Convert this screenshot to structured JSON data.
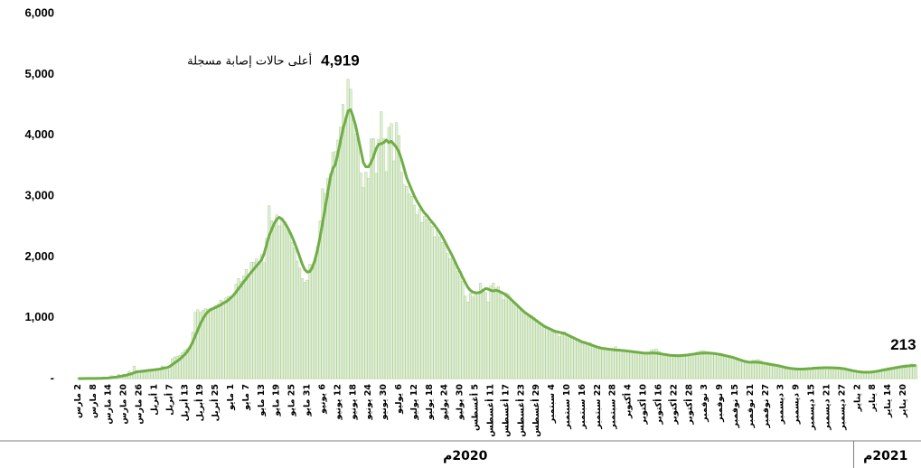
{
  "chart_data": {
    "type": "bar",
    "ylim": [
      0,
      6000
    ],
    "yticks": [
      {
        "value": 0,
        "label": "-"
      },
      {
        "value": 1000,
        "label": "1,000"
      },
      {
        "value": 2000,
        "label": "2,000"
      },
      {
        "value": 3000,
        "label": "3,000"
      },
      {
        "value": 4000,
        "label": "4,000"
      },
      {
        "value": 5000,
        "label": "5,000"
      },
      {
        "value": 6000,
        "label": "6,000"
      }
    ],
    "categories": [
      "2 مارس",
      null,
      null,
      null,
      null,
      null,
      "8 مارس",
      null,
      null,
      null,
      null,
      null,
      "14 مارس",
      null,
      null,
      null,
      null,
      null,
      "20 مارس",
      null,
      null,
      null,
      null,
      null,
      "26 مارس",
      null,
      null,
      null,
      null,
      null,
      "1 أبريل",
      null,
      null,
      null,
      null,
      null,
      "7 أبريل",
      null,
      null,
      null,
      null,
      null,
      "13 أبريل",
      null,
      null,
      null,
      null,
      null,
      "19 أبريل",
      null,
      null,
      null,
      null,
      null,
      "25 أبريل",
      null,
      null,
      null,
      null,
      null,
      "1 مايو",
      null,
      null,
      null,
      null,
      null,
      "7 مايو",
      null,
      null,
      null,
      null,
      null,
      "13 مايو",
      null,
      null,
      null,
      null,
      null,
      "19 مايو",
      null,
      null,
      null,
      null,
      null,
      "25 مايو",
      null,
      null,
      null,
      null,
      null,
      "31 مايو",
      null,
      null,
      null,
      null,
      null,
      "6 يونيو",
      null,
      null,
      null,
      null,
      null,
      "12 يونيو",
      null,
      null,
      null,
      null,
      null,
      "18 يونيو",
      null,
      null,
      null,
      null,
      null,
      "24 يونيو",
      null,
      null,
      null,
      null,
      null,
      "30 يونيو",
      null,
      null,
      null,
      null,
      null,
      "6 يوليو",
      null,
      null,
      null,
      null,
      null,
      "12 يوليو",
      null,
      null,
      null,
      null,
      null,
      "18 يوليو",
      null,
      null,
      null,
      null,
      null,
      "24 يوليو",
      null,
      null,
      null,
      null,
      null,
      "30 يوليو",
      null,
      null,
      null,
      null,
      null,
      "5 أغسطس",
      null,
      null,
      null,
      null,
      null,
      "11 أغسطس",
      null,
      null,
      null,
      null,
      null,
      "17 أغسطس",
      null,
      null,
      null,
      null,
      null,
      "23 أغسطس",
      null,
      null,
      null,
      null,
      null,
      "29 أغسطس",
      null,
      null,
      null,
      null,
      null,
      "4 سبتمبر",
      null,
      null,
      null,
      null,
      null,
      "10 سبتمبر",
      null,
      null,
      null,
      null,
      null,
      "16 سبتمبر",
      null,
      null,
      null,
      null,
      null,
      "22 سبتمبر",
      null,
      null,
      null,
      null,
      null,
      "28 سبتمبر",
      null,
      null,
      null,
      null,
      null,
      "4 أكتوبر",
      null,
      null,
      null,
      null,
      null,
      "10 أكتوبر",
      null,
      null,
      null,
      null,
      null,
      "16 أكتوبر",
      null,
      null,
      null,
      null,
      null,
      "22 أكتوبر",
      null,
      null,
      null,
      null,
      null,
      "28 أكتوبر",
      null,
      null,
      null,
      null,
      null,
      "3 نوفمبر",
      null,
      null,
      null,
      null,
      null,
      "9 نوفمبر",
      null,
      null,
      null,
      null,
      null,
      "15 نوفمبر",
      null,
      null,
      null,
      null,
      null,
      "21 نوفمبر",
      null,
      null,
      null,
      null,
      null,
      "27 نوفمبر",
      null,
      null,
      null,
      null,
      null,
      "3 ديسمبر",
      null,
      null,
      null,
      null,
      null,
      "9 ديسمبر",
      null,
      null,
      null,
      null,
      null,
      "15 ديسمبر",
      null,
      null,
      null,
      null,
      null,
      "21 ديسمبر",
      null,
      null,
      null,
      null,
      null,
      "27 ديسمبر",
      null,
      null,
      null,
      null,
      null,
      "2 يناير",
      null,
      null,
      null,
      null,
      null,
      "8 يناير",
      null,
      null,
      null,
      null,
      null,
      "14 يناير",
      null,
      null,
      null,
      null,
      null,
      "20 يناير",
      null,
      null,
      null,
      null,
      null
    ],
    "series": [
      {
        "style": "bar",
        "color": "#e2efda",
        "stroke": "#a9d08e",
        "values": [
          0,
          1,
          0,
          1,
          3,
          0,
          4,
          5,
          5,
          0,
          24,
          17,
          17,
          47,
          15,
          38,
          67,
          36,
          70,
          51,
          119,
          56,
          205,
          133,
          112,
          92,
          99,
          96,
          154,
          110,
          157,
          165,
          140,
          206,
          191,
          138,
          190,
          327,
          355,
          364,
          382,
          429,
          472,
          493,
          518,
          762,
          1088,
          1132,
          1088,
          1122,
          1147,
          1141,
          1158,
          1172,
          1197,
          1223,
          1289,
          1266,
          1325,
          1351,
          1344,
          1362,
          1552,
          1645,
          1595,
          1687,
          1793,
          1701,
          1905,
          1912,
          1966,
          1911,
          2039,
          1905,
          2307,
          2840,
          2593,
          2509,
          2691,
          2509,
          2642,
          2532,
          2442,
          2399,
          2235,
          2148,
          1931,
          1815,
          1644,
          1581,
          1618,
          1881,
          1869,
          1975,
          2171,
          2591,
          3121,
          3045,
          3288,
          3369,
          3717,
          3733,
          3921,
          4133,
          4507,
          4267,
          4919,
          4757,
          4301,
          4019,
          3941,
          3379,
          3139,
          3393,
          3288,
          3938,
          3946,
          3372,
          3927,
          4387,
          3943,
          3402,
          4128,
          4193,
          3580,
          4207,
          3995,
          3392,
          3183,
          3159,
          3036,
          2994,
          2852,
          2692,
          2779,
          2565,
          2671,
          2613,
          2565,
          2504,
          2331,
          2429,
          2331,
          2238,
          2201,
          2056,
          1968,
          1993,
          1897,
          1759,
          1686,
          1599,
          1357,
          1258,
          1402,
          1342,
          1389,
          1428,
          1567,
          1469,
          1413,
          1257,
          1521,
          1569,
          1488,
          1513,
          1402,
          1294,
          1409,
          1387,
          1307,
          1258,
          1230,
          1184,
          1151,
          1069,
          1059,
          1010,
          1038,
          1002,
          936,
          919,
          905,
          878,
          832,
          802,
          771,
          751,
          780,
          687,
          726,
          768,
          725,
          704,
          668,
          643,
          624,
          612,
          580,
          584,
          567,
          589,
          544,
          532,
          505,
          515,
          507,
          510,
          492,
          470,
          476,
          522,
          457,
          453,
          466,
          456,
          443,
          433,
          429,
          421,
          418,
          428,
          411,
          430,
          437,
          466,
          476,
          488,
          452,
          395,
          391,
          378,
          373,
          365,
          362,
          357,
          347,
          346,
          376,
          378,
          389,
          399,
          411,
          435,
          446,
          461,
          456,
          442,
          435,
          418,
          422,
          402,
          392,
          375,
          361,
          354,
          349,
          336,
          322,
          311,
          298,
          290,
          281,
          274,
          283,
          299,
          301,
          312,
          296,
          265,
          248,
          245,
          232,
          222,
          214,
          203,
          199,
          191,
          184,
          172,
          168,
          161,
          152,
          155,
          148,
          157,
          162,
          170,
          176,
          169,
          174,
          178,
          181,
          184,
          186,
          179,
          178,
          175,
          172,
          169,
          163,
          157,
          145,
          131,
          118,
          113,
          101,
          98,
          93,
          96,
          104,
          110,
          118,
          127,
          138,
          149,
          162,
          170,
          178,
          185,
          190,
          196,
          205,
          211,
          218,
          229,
          224,
          239,
          235,
          213
        ]
      },
      {
        "style": "line",
        "color": "#70ad47",
        "values": [
          0,
          0,
          0,
          1,
          1,
          1,
          2,
          2,
          3,
          4,
          6,
          8,
          10,
          15,
          20,
          25,
          33,
          40,
          48,
          55,
          70,
          80,
          95,
          110,
          115,
          120,
          125,
          130,
          135,
          140,
          145,
          150,
          155,
          165,
          175,
          180,
          200,
          230,
          260,
          290,
          320,
          360,
          400,
          450,
          520,
          600,
          700,
          800,
          900,
          980,
          1050,
          1100,
          1130,
          1150,
          1170,
          1190,
          1210,
          1240,
          1260,
          1290,
          1330,
          1370,
          1420,
          1480,
          1530,
          1590,
          1640,
          1700,
          1750,
          1800,
          1850,
          1900,
          1950,
          2050,
          2200,
          2350,
          2450,
          2550,
          2620,
          2650,
          2620,
          2570,
          2500,
          2420,
          2330,
          2230,
          2120,
          2000,
          1880,
          1790,
          1750,
          1760,
          1830,
          1950,
          2120,
          2330,
          2560,
          2800,
          3050,
          3300,
          3450,
          3520,
          3700,
          3900,
          4100,
          4250,
          4400,
          4420,
          4300,
          4150,
          3950,
          3750,
          3550,
          3480,
          3480,
          3550,
          3650,
          3780,
          3850,
          3860,
          3880,
          3920,
          3880,
          3900,
          3850,
          3800,
          3720,
          3600,
          3450,
          3300,
          3200,
          3100,
          3000,
          2920,
          2850,
          2780,
          2720,
          2680,
          2620,
          2570,
          2520,
          2460,
          2400,
          2330,
          2250,
          2170,
          2090,
          2010,
          1920,
          1830,
          1750,
          1660,
          1580,
          1500,
          1450,
          1420,
          1410,
          1410,
          1420,
          1450,
          1480,
          1470,
          1450,
          1440,
          1450,
          1440,
          1420,
          1400,
          1370,
          1340,
          1300,
          1260,
          1220,
          1180,
          1140,
          1100,
          1070,
          1040,
          1010,
          980,
          950,
          920,
          890,
          860,
          840,
          820,
          800,
          780,
          770,
          760,
          750,
          740,
          720,
          700,
          680,
          660,
          640,
          620,
          600,
          590,
          575,
          560,
          545,
          530,
          515,
          505,
          495,
          490,
          485,
          480,
          475,
          470,
          468,
          465,
          460,
          456,
          450,
          445,
          440,
          435,
          430,
          425,
          420,
          418,
          418,
          420,
          420,
          418,
          412,
          405,
          398,
          392,
          385,
          380,
          378,
          376,
          376,
          378,
          382,
          386,
          392,
          398,
          404,
          410,
          415,
          418,
          420,
          420,
          418,
          415,
          410,
          404,
          397,
          388,
          378,
          368,
          358,
          348,
          335,
          320,
          305,
          292,
          280,
          272,
          270,
          270,
          270,
          268,
          262,
          255,
          248,
          240,
          232,
          225,
          218,
          210,
          200,
          190,
          180,
          172,
          166,
          161,
          158,
          156,
          155,
          157,
          160,
          163,
          166,
          170,
          172,
          175,
          177,
          178,
          178,
          178,
          177,
          175,
          173,
          170,
          166,
          160,
          150,
          140,
          130,
          122,
          115,
          110,
          106,
          104,
          104,
          106,
          110,
          116,
          122,
          130,
          138,
          146,
          154,
          162,
          170,
          178,
          186,
          193,
          198,
          203,
          207,
          211,
          213,
          213
        ]
      }
    ],
    "annotations": [
      {
        "series": 0,
        "value": 4919,
        "label": "4,919",
        "text": "أعلى حالات إصابة مسجلة"
      },
      {
        "series": 1,
        "value": 213,
        "label": "213"
      }
    ],
    "groups": [
      {
        "label": "2020م",
        "count": 305
      },
      {
        "label": "2021م",
        "count": 25
      }
    ]
  }
}
